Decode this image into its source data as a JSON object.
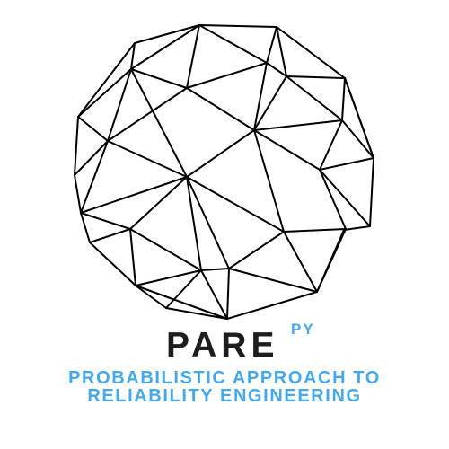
{
  "logo": {
    "name": "PARE",
    "suffix": "PY",
    "tagline_line1": "PROBABILISTIC APPROACH TO",
    "tagline_line2": "RELIABILITY ENGINEERING",
    "icon": "geodesic-sphere-icon"
  },
  "colors": {
    "name": "#1d1d1d",
    "accent": "#45a8ee",
    "wireframe": "#000000",
    "background": "#ffffff"
  }
}
